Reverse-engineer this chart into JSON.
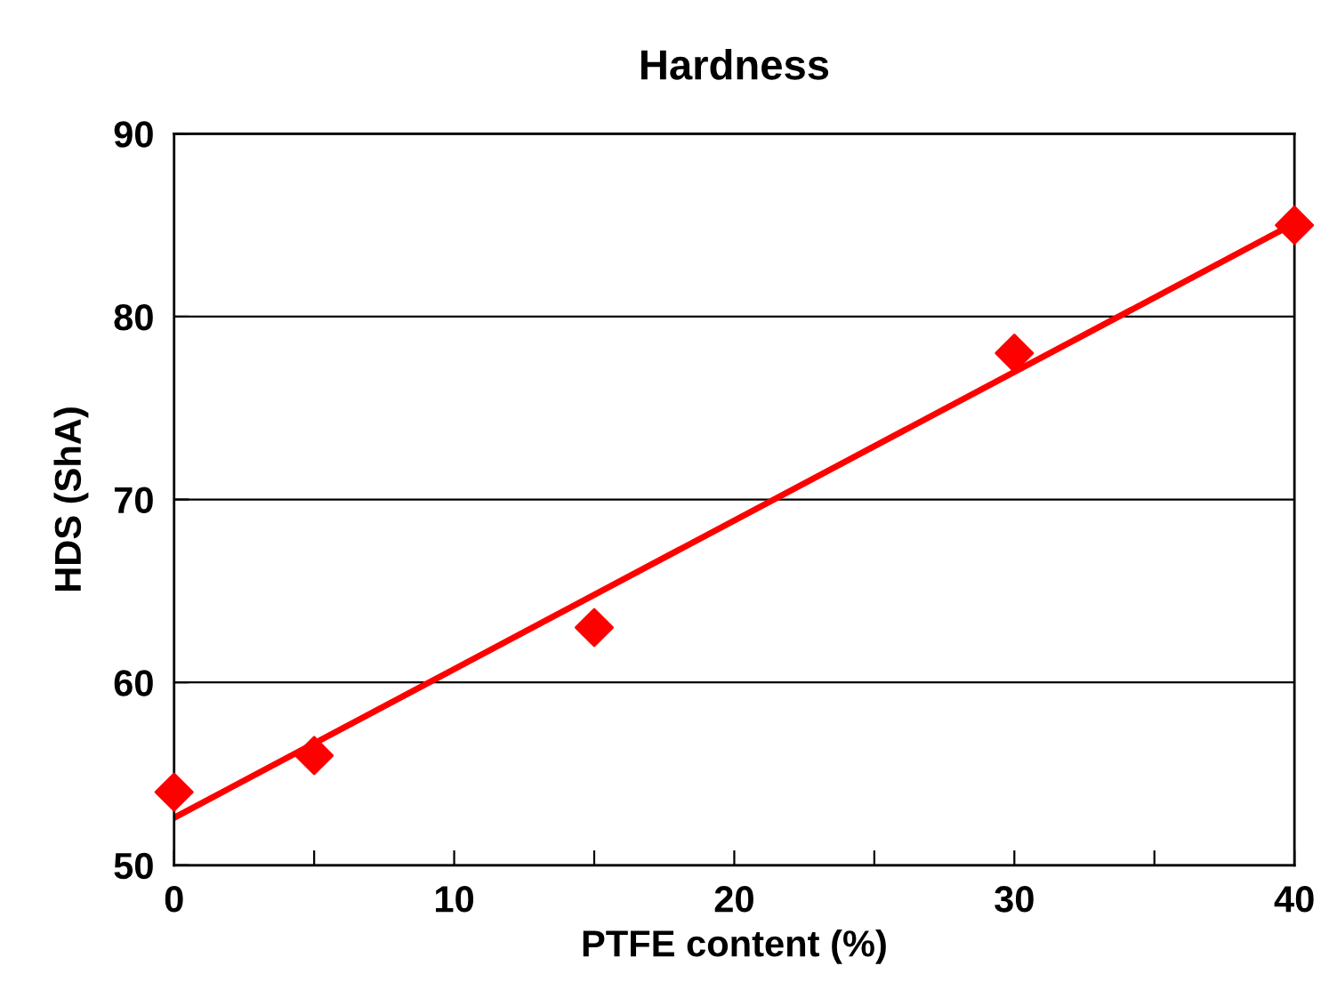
{
  "chart_data": {
    "type": "scatter",
    "title": "Hardness",
    "xlabel": "PTFE content (%)",
    "ylabel": "HDS (ShA)",
    "series": [
      {
        "color": "#ff0000",
        "marker": "diamond",
        "x": [
          0,
          5,
          15,
          30,
          40
        ],
        "values": [
          54,
          56,
          63,
          78,
          85
        ]
      },
      {
        "type": "line",
        "color": "#ff0000",
        "line_style": "solid",
        "x": [
          0,
          40
        ],
        "values": [
          52.6,
          85.1
        ]
      }
    ],
    "xlim": [
      0,
      40
    ],
    "ylim": [
      50,
      90
    ],
    "xticks": [
      0,
      {
        "value": 5,
        "label": null
      },
      10,
      {
        "value": 15,
        "label": null
      },
      20,
      {
        "value": 25,
        "label": null
      },
      30,
      {
        "value": 35,
        "label": null
      },
      40
    ],
    "yticks": [
      50,
      60,
      70,
      80,
      90
    ],
    "grid": "y"
  }
}
